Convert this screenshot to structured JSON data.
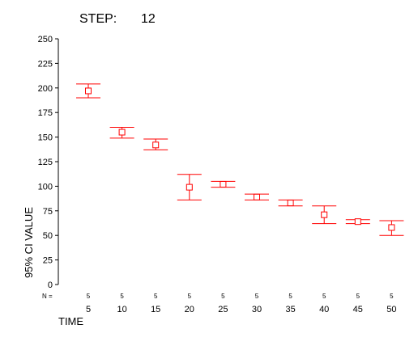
{
  "step": {
    "label": "STEP:",
    "value": "12"
  },
  "chart_data": {
    "type": "errorbar",
    "title": "",
    "xlabel": "TIME",
    "ylabel": "95% CI VALUE",
    "ylim": [
      0,
      250
    ],
    "yticks": [
      0,
      25,
      50,
      75,
      100,
      125,
      150,
      175,
      200,
      225,
      250
    ],
    "n_prefix": "N =",
    "grid": false,
    "color": "#ff0000",
    "categories": [
      "5",
      "10",
      "15",
      "20",
      "25",
      "30",
      "35",
      "40",
      "45",
      "50"
    ],
    "n": [
      "5",
      "5",
      "5",
      "5",
      "5",
      "5",
      "5",
      "5",
      "5",
      "5"
    ],
    "mean": [
      197,
      155,
      142,
      99,
      102,
      89,
      83,
      71,
      64,
      58
    ],
    "lower": [
      190,
      149,
      137,
      86,
      99,
      86,
      80,
      62,
      62,
      50
    ],
    "upper": [
      204,
      160,
      148,
      112,
      105,
      92,
      86,
      80,
      66,
      65
    ]
  }
}
